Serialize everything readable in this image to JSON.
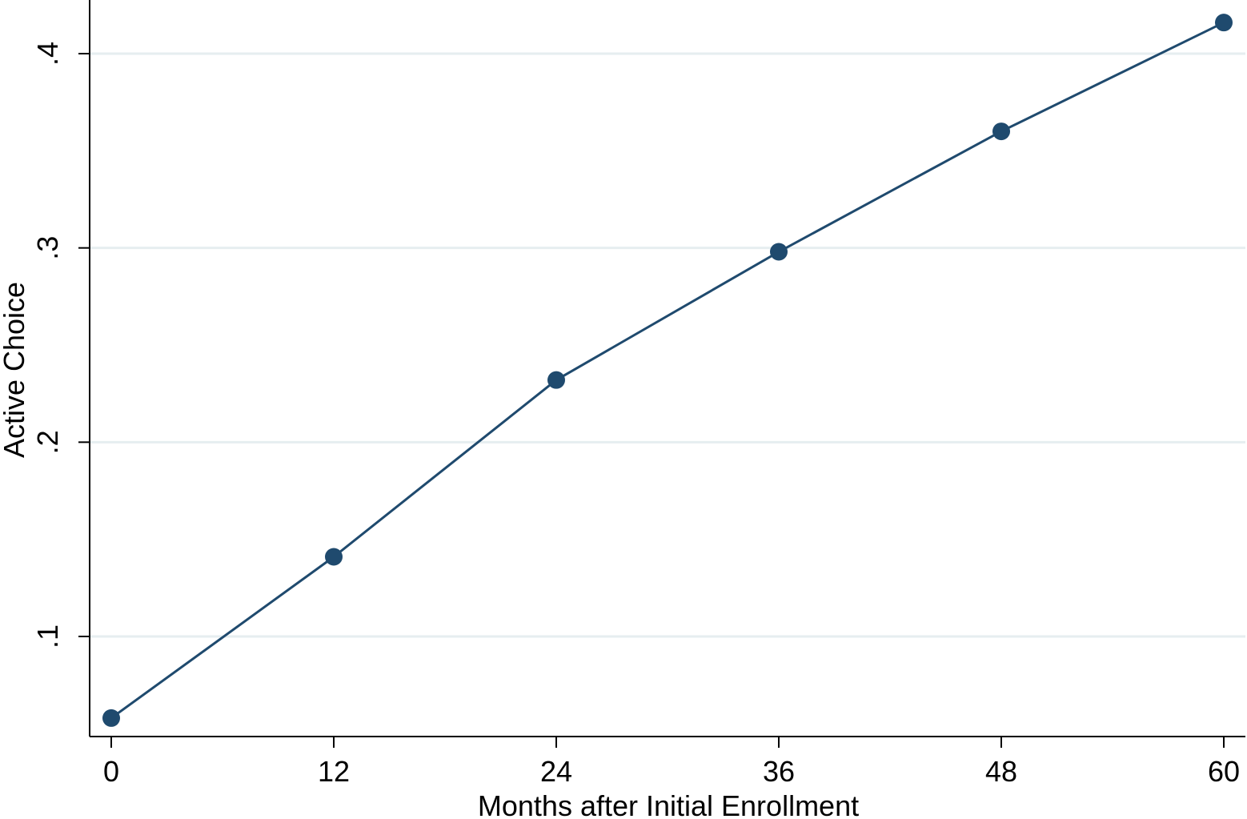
{
  "chart_data": {
    "type": "line",
    "xlabel": "Months after Initial Enrollment",
    "ylabel": "Active Choice",
    "xlim": [
      0,
      60
    ],
    "ylim": [
      0.05,
      0.42
    ],
    "x_ticks": [
      0,
      12,
      24,
      36,
      48,
      60
    ],
    "x_tick_labels": [
      "0",
      "12",
      "24",
      "36",
      "48",
      "60"
    ],
    "y_ticks": [
      0.1,
      0.2,
      0.3,
      0.4
    ],
    "y_tick_labels": [
      ".1",
      ".2",
      ".3",
      ".4"
    ],
    "grid": "horizontal",
    "x": [
      0,
      12,
      24,
      36,
      48,
      60
    ],
    "series": [
      {
        "values": [
          0.058,
          0.141,
          0.232,
          0.298,
          0.36,
          0.416
        ]
      }
    ],
    "colors": {
      "series": "#1f4a6e",
      "grid": "#e6eef0",
      "axis": "#000000"
    }
  }
}
